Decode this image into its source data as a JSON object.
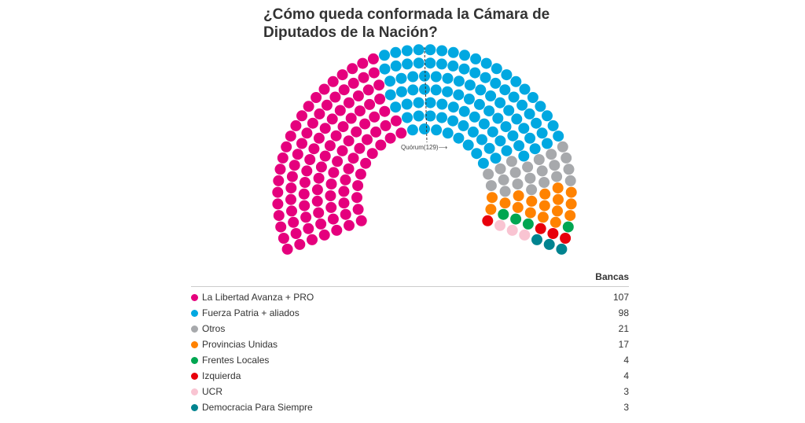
{
  "title": "¿Cómo queda conformada la Cámara de Diputados de la Nación?",
  "chart_data": {
    "type": "parliament",
    "title": "¿Cómo queda conformada la Cámara de Diputados de la Nación?",
    "total_seats": 257,
    "quorum_label": "Quórum(129)⟶",
    "quorum": 129,
    "column_header": "Bancas",
    "parties": [
      {
        "name": "La Libertad Avanza + PRO",
        "seats": 107,
        "color": "#e5007d"
      },
      {
        "name": "Fuerza Patria + aliados",
        "seats": 98,
        "color": "#00a8e1"
      },
      {
        "name": "Otros",
        "seats": 21,
        "color": "#a7a9ac"
      },
      {
        "name": "Provincias Unidas",
        "seats": 17,
        "color": "#ff8200"
      },
      {
        "name": "Frentes Locales",
        "seats": 4,
        "color": "#00a651"
      },
      {
        "name": "Izquierda",
        "seats": 4,
        "color": "#e8000b"
      },
      {
        "name": "UCR",
        "seats": 3,
        "color": "#f9c4d2"
      },
      {
        "name": "Democracia Para Siempre",
        "seats": 3,
        "color": "#00838f"
      }
    ]
  }
}
